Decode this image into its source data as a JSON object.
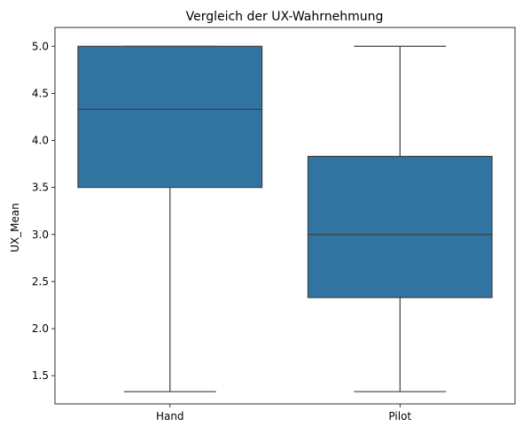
{
  "chart_data": {
    "type": "box",
    "title": "Vergleich der UX-Wahrnehmung",
    "xlabel": "",
    "ylabel": "UX_Mean",
    "categories": [
      "Hand",
      "Pilot"
    ],
    "boxes": [
      {
        "category": "Hand",
        "min": 1.33,
        "q1": 3.5,
        "median": 4.33,
        "q3": 5.0,
        "max": 5.0
      },
      {
        "category": "Pilot",
        "min": 1.33,
        "q1": 2.33,
        "median": 3.0,
        "q3": 3.83,
        "max": 5.0
      }
    ],
    "ylim": [
      1.2,
      5.2
    ],
    "yticks": [
      1.5,
      2.0,
      2.5,
      3.0,
      3.5,
      4.0,
      4.5,
      5.0
    ],
    "ytick_labels": [
      "1.5",
      "2.0",
      "2.5",
      "3.0",
      "3.5",
      "4.0",
      "4.5",
      "5.0"
    ],
    "grid": false,
    "colors": {
      "box_fill": "#3274a1",
      "line": "#3f3f3f"
    }
  }
}
